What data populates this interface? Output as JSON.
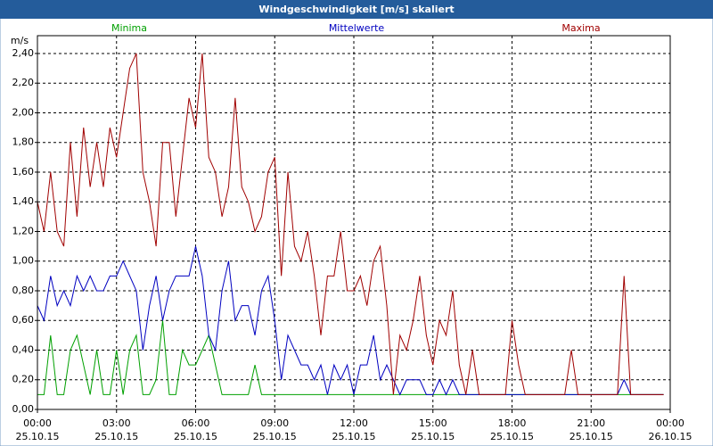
{
  "chart_data": {
    "type": "line",
    "title": "Windgeschwindigkeit [m/s] skaliert",
    "y_unit": "m/s",
    "x": [
      0,
      0.25,
      0.5,
      0.75,
      1,
      1.25,
      1.5,
      1.75,
      2,
      2.25,
      2.5,
      2.75,
      3,
      3.25,
      3.5,
      3.75,
      4,
      4.25,
      4.5,
      4.75,
      5,
      5.25,
      5.5,
      5.75,
      6,
      6.25,
      6.5,
      6.75,
      7,
      7.25,
      7.5,
      7.75,
      8,
      8.25,
      8.5,
      8.75,
      9,
      9.25,
      9.5,
      9.75,
      10,
      10.25,
      10.5,
      10.75,
      11,
      11.25,
      11.5,
      11.75,
      12,
      12.25,
      12.5,
      12.75,
      13,
      13.25,
      13.5,
      13.75,
      14,
      14.25,
      14.5,
      14.75,
      15,
      15.25,
      15.5,
      15.75,
      16,
      16.25,
      16.5,
      16.75,
      17,
      17.25,
      17.5,
      17.75,
      18,
      18.25,
      18.5,
      18.75,
      19,
      19.25,
      19.5,
      19.75,
      20,
      20.25,
      20.5,
      20.75,
      21,
      21.25,
      21.5,
      21.75,
      22,
      22.25,
      22.5,
      22.75,
      23,
      23.25,
      23.5,
      23.75
    ],
    "series": [
      {
        "name": "Minima",
        "color": "#00a000",
        "values": [
          0.1,
          0.1,
          0.5,
          0.1,
          0.1,
          0.4,
          0.5,
          0.3,
          0.1,
          0.4,
          0.1,
          0.1,
          0.4,
          0.1,
          0.4,
          0.5,
          0.1,
          0.1,
          0.2,
          0.6,
          0.1,
          0.1,
          0.4,
          0.3,
          0.3,
          0.4,
          0.5,
          0.3,
          0.1,
          0.1,
          0.1,
          0.1,
          0.1,
          0.3,
          0.1,
          0.1,
          0.1,
          0.1,
          0.1,
          0.1,
          0.1,
          0.1,
          0.1,
          0.1,
          0.1,
          0.1,
          0.1,
          0.1,
          0.1,
          0.1,
          0.1,
          0.1,
          0.1,
          0.1,
          0.1,
          0.1,
          0.1,
          0.1,
          0.1,
          0.1,
          0.1,
          0.1,
          0.1,
          0.1,
          0.1,
          0.1,
          0.1,
          0.1,
          0.1,
          0.1,
          0.1,
          0.1,
          0.1,
          0.1,
          0.1,
          0.1,
          0.1,
          0.1,
          0.1,
          0.1,
          0.1,
          0.1,
          0.1,
          0.1,
          0.1,
          0.1,
          0.1,
          0.1,
          0.1,
          0.1,
          0.1,
          0.1,
          0.1,
          0.1,
          0.1,
          0.1
        ]
      },
      {
        "name": "Mittelwerte",
        "color": "#0000c0",
        "values": [
          0.7,
          0.6,
          0.9,
          0.7,
          0.8,
          0.7,
          0.9,
          0.8,
          0.9,
          0.8,
          0.8,
          0.9,
          0.9,
          1.0,
          0.9,
          0.8,
          0.4,
          0.7,
          0.9,
          0.6,
          0.8,
          0.9,
          0.9,
          0.9,
          1.1,
          0.9,
          0.5,
          0.4,
          0.8,
          1.0,
          0.6,
          0.7,
          0.7,
          0.5,
          0.8,
          0.9,
          0.6,
          0.2,
          0.5,
          0.4,
          0.3,
          0.3,
          0.2,
          0.3,
          0.1,
          0.3,
          0.2,
          0.3,
          0.1,
          0.3,
          0.3,
          0.5,
          0.2,
          0.3,
          0.2,
          0.1,
          0.2,
          0.2,
          0.2,
          0.1,
          0.1,
          0.2,
          0.1,
          0.2,
          0.1,
          0.1,
          0.1,
          0.1,
          0.1,
          0.1,
          0.1,
          0.1,
          0.1,
          0.1,
          0.1,
          0.1,
          0.1,
          0.1,
          0.1,
          0.1,
          0.1,
          0.1,
          0.1,
          0.1,
          0.1,
          0.1,
          0.1,
          0.1,
          0.1,
          0.2,
          0.1,
          0.1,
          0.1,
          0.1,
          0.1,
          0.1
        ]
      },
      {
        "name": "Maxima",
        "color": "#a00000",
        "values": [
          1.4,
          1.2,
          1.6,
          1.2,
          1.1,
          1.8,
          1.3,
          1.9,
          1.5,
          1.8,
          1.5,
          1.9,
          1.7,
          2.0,
          2.3,
          2.4,
          1.6,
          1.4,
          1.1,
          1.8,
          1.8,
          1.3,
          1.7,
          2.1,
          1.9,
          2.4,
          1.7,
          1.6,
          1.3,
          1.5,
          2.1,
          1.5,
          1.4,
          1.2,
          1.3,
          1.6,
          1.7,
          0.9,
          1.6,
          1.1,
          1.0,
          1.2,
          0.9,
          0.5,
          0.9,
          0.9,
          1.2,
          0.8,
          0.8,
          0.9,
          0.7,
          1.0,
          1.1,
          0.7,
          0.1,
          0.5,
          0.4,
          0.6,
          0.9,
          0.5,
          0.3,
          0.6,
          0.5,
          0.8,
          0.3,
          0.1,
          0.4,
          0.1,
          0.1,
          0.1,
          0.1,
          0.1,
          0.6,
          0.3,
          0.1,
          0.1,
          0.1,
          0.1,
          0.1,
          0.1,
          0.1,
          0.4,
          0.1,
          0.1,
          0.1,
          0.1,
          0.1,
          0.1,
          0.1,
          0.9,
          0.1,
          0.1,
          0.1,
          0.1,
          0.1,
          0.1
        ]
      }
    ],
    "xlim": [
      0,
      24
    ],
    "xticks": [
      {
        "value": 0,
        "label": "00:00"
      },
      {
        "value": 3,
        "label": "03:00"
      },
      {
        "value": 6,
        "label": "06:00"
      },
      {
        "value": 9,
        "label": "09:00"
      },
      {
        "value": 12,
        "label": "12:00"
      },
      {
        "value": 15,
        "label": "15:00"
      },
      {
        "value": 18,
        "label": "18:00"
      },
      {
        "value": 21,
        "label": "21:00"
      },
      {
        "value": 24,
        "label": "00:00"
      }
    ],
    "xtick_dates": [
      "25.10.15",
      "25.10.15",
      "25.10.15",
      "25.10.15",
      "25.10.15",
      "25.10.15",
      "25.10.15",
      "25.10.15",
      "26.10.15"
    ],
    "ylim": [
      0,
      2.52
    ],
    "yticks": [
      {
        "value": 0,
        "label": "0,00"
      },
      {
        "value": 0.2,
        "label": "0,20"
      },
      {
        "value": 0.4,
        "label": "0,40"
      },
      {
        "value": 0.6,
        "label": "0,60"
      },
      {
        "value": 0.8,
        "label": "0,80"
      },
      {
        "value": 1.0,
        "label": "1,00"
      },
      {
        "value": 1.2,
        "label": "1,20"
      },
      {
        "value": 1.4,
        "label": "1,40"
      },
      {
        "value": 1.6,
        "label": "1,60"
      },
      {
        "value": 1.8,
        "label": "1,80"
      },
      {
        "value": 2.0,
        "label": "2,00"
      },
      {
        "value": 2.2,
        "label": "2,20"
      },
      {
        "value": 2.4,
        "label": "2,40"
      }
    ],
    "grid": true
  }
}
